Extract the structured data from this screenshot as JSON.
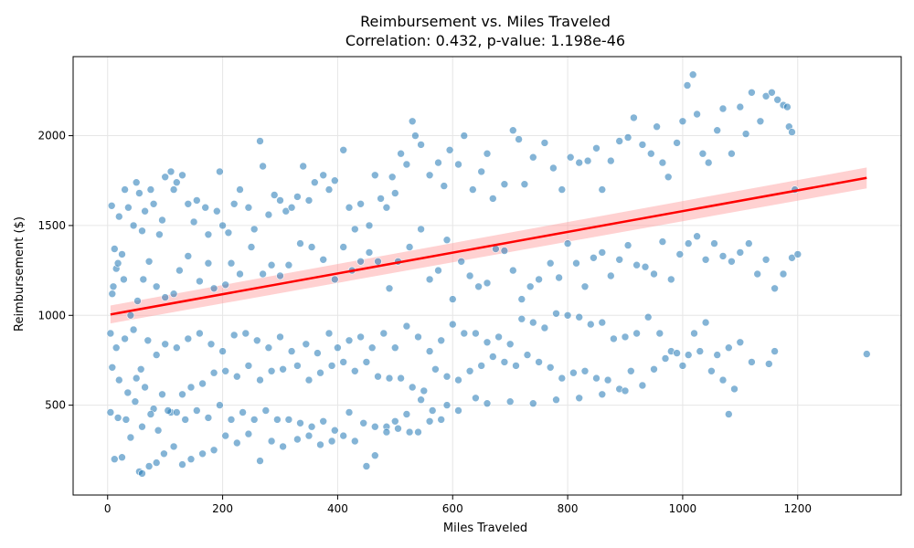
{
  "chart_data": {
    "type": "scatter",
    "title": "Reimbursement vs. Miles Traveled",
    "subtitle": "Correlation: 0.432, p-value: 1.198e-46",
    "xlabel": "Miles Traveled",
    "ylabel": "Reimbursement ($)",
    "xlim": [
      -60,
      1380
    ],
    "ylim": [
      0,
      2440
    ],
    "xticks": [
      0,
      200,
      400,
      600,
      800,
      1000,
      1200
    ],
    "yticks": [
      500,
      1000,
      1500,
      2000
    ],
    "grid": true,
    "point_color": "#1f77b4",
    "fit_line": {
      "color": "#ff0000",
      "band_color": "#ff9999",
      "x": [
        5,
        1320
      ],
      "y": [
        1005,
        1765
      ],
      "band_half_width": [
        50,
        58
      ]
    },
    "points": [
      [
        7,
        1610
      ],
      [
        12,
        1370
      ],
      [
        8,
        1120
      ],
      [
        20,
        1550
      ],
      [
        25,
        1340
      ],
      [
        15,
        1260
      ],
      [
        30,
        1700
      ],
      [
        36,
        1600
      ],
      [
        45,
        1500
      ],
      [
        50,
        1740
      ],
      [
        55,
        1680
      ],
      [
        60,
        1470
      ],
      [
        65,
        1580
      ],
      [
        75,
        1700
      ],
      [
        80,
        1620
      ],
      [
        90,
        1450
      ],
      [
        95,
        1530
      ],
      [
        100,
        1770
      ],
      [
        110,
        1800
      ],
      [
        115,
        1700
      ],
      [
        120,
        1740
      ],
      [
        130,
        1780
      ],
      [
        140,
        1620
      ],
      [
        150,
        1520
      ],
      [
        155,
        1640
      ],
      [
        170,
        1600
      ],
      [
        175,
        1450
      ],
      [
        190,
        1580
      ],
      [
        195,
        1800
      ],
      [
        200,
        1500
      ],
      [
        210,
        1460
      ],
      [
        220,
        1620
      ],
      [
        230,
        1700
      ],
      [
        245,
        1600
      ],
      [
        255,
        1480
      ],
      [
        265,
        1970
      ],
      [
        270,
        1830
      ],
      [
        280,
        1560
      ],
      [
        290,
        1670
      ],
      [
        300,
        1640
      ],
      [
        310,
        1580
      ],
      [
        320,
        1600
      ],
      [
        330,
        1660
      ],
      [
        340,
        1830
      ],
      [
        350,
        1640
      ],
      [
        360,
        1740
      ],
      [
        375,
        1780
      ],
      [
        385,
        1700
      ],
      [
        395,
        1750
      ],
      [
        410,
        1920
      ],
      [
        420,
        1600
      ],
      [
        430,
        1480
      ],
      [
        440,
        1620
      ],
      [
        455,
        1500
      ],
      [
        465,
        1780
      ],
      [
        475,
        1650
      ],
      [
        485,
        1600
      ],
      [
        495,
        1770
      ],
      [
        500,
        1680
      ],
      [
        510,
        1900
      ],
      [
        520,
        1840
      ],
      [
        530,
        2080
      ],
      [
        535,
        2000
      ],
      [
        545,
        1950
      ],
      [
        560,
        1780
      ],
      [
        575,
        1850
      ],
      [
        585,
        1720
      ],
      [
        595,
        1920
      ],
      [
        610,
        1840
      ],
      [
        620,
        2000
      ],
      [
        635,
        1700
      ],
      [
        650,
        1800
      ],
      [
        660,
        1900
      ],
      [
        670,
        1650
      ],
      [
        690,
        1730
      ],
      [
        705,
        2030
      ],
      [
        715,
        1980
      ],
      [
        725,
        1730
      ],
      [
        740,
        1880
      ],
      [
        760,
        1960
      ],
      [
        775,
        1820
      ],
      [
        790,
        1700
      ],
      [
        805,
        1880
      ],
      [
        820,
        1850
      ],
      [
        835,
        1860
      ],
      [
        850,
        1930
      ],
      [
        860,
        1700
      ],
      [
        875,
        1860
      ],
      [
        890,
        1970
      ],
      [
        905,
        1990
      ],
      [
        915,
        2100
      ],
      [
        930,
        1950
      ],
      [
        945,
        1900
      ],
      [
        955,
        2050
      ],
      [
        965,
        1850
      ],
      [
        975,
        1770
      ],
      [
        990,
        1960
      ],
      [
        1000,
        2080
      ],
      [
        1008,
        2280
      ],
      [
        1018,
        2340
      ],
      [
        1025,
        2120
      ],
      [
        1035,
        1900
      ],
      [
        1045,
        1850
      ],
      [
        1060,
        2030
      ],
      [
        1070,
        2150
      ],
      [
        1085,
        1900
      ],
      [
        1100,
        2160
      ],
      [
        1110,
        2010
      ],
      [
        1120,
        2240
      ],
      [
        1135,
        2080
      ],
      [
        1145,
        2220
      ],
      [
        1155,
        2240
      ],
      [
        1165,
        2200
      ],
      [
        1175,
        2170
      ],
      [
        1182,
        2160
      ],
      [
        1185,
        2050
      ],
      [
        1190,
        2020
      ],
      [
        1195,
        1700
      ],
      [
        10,
        1160
      ],
      [
        18,
        1290
      ],
      [
        28,
        1200
      ],
      [
        40,
        1000
      ],
      [
        52,
        1080
      ],
      [
        62,
        1200
      ],
      [
        72,
        1300
      ],
      [
        85,
        1160
      ],
      [
        100,
        1100
      ],
      [
        115,
        1120
      ],
      [
        125,
        1250
      ],
      [
        140,
        1330
      ],
      [
        160,
        1190
      ],
      [
        175,
        1290
      ],
      [
        185,
        1150
      ],
      [
        205,
        1170
      ],
      [
        215,
        1290
      ],
      [
        230,
        1230
      ],
      [
        250,
        1380
      ],
      [
        270,
        1230
      ],
      [
        285,
        1280
      ],
      [
        300,
        1220
      ],
      [
        315,
        1280
      ],
      [
        335,
        1400
      ],
      [
        355,
        1380
      ],
      [
        375,
        1310
      ],
      [
        395,
        1200
      ],
      [
        410,
        1380
      ],
      [
        425,
        1250
      ],
      [
        440,
        1300
      ],
      [
        455,
        1350
      ],
      [
        470,
        1300
      ],
      [
        490,
        1150
      ],
      [
        505,
        1300
      ],
      [
        525,
        1380
      ],
      [
        545,
        1480
      ],
      [
        560,
        1200
      ],
      [
        575,
        1250
      ],
      [
        590,
        1420
      ],
      [
        600,
        1090
      ],
      [
        615,
        1300
      ],
      [
        630,
        1220
      ],
      [
        645,
        1160
      ],
      [
        660,
        1180
      ],
      [
        675,
        1370
      ],
      [
        690,
        1360
      ],
      [
        705,
        1250
      ],
      [
        720,
        1090
      ],
      [
        735,
        1160
      ],
      [
        750,
        1200
      ],
      [
        770,
        1290
      ],
      [
        785,
        1210
      ],
      [
        800,
        1400
      ],
      [
        815,
        1290
      ],
      [
        830,
        1160
      ],
      [
        845,
        1320
      ],
      [
        860,
        1350
      ],
      [
        875,
        1220
      ],
      [
        890,
        1310
      ],
      [
        905,
        1390
      ],
      [
        920,
        1280
      ],
      [
        935,
        1270
      ],
      [
        950,
        1230
      ],
      [
        965,
        1410
      ],
      [
        980,
        1200
      ],
      [
        995,
        1340
      ],
      [
        1010,
        1400
      ],
      [
        1025,
        1440
      ],
      [
        1040,
        1310
      ],
      [
        1055,
        1400
      ],
      [
        1070,
        1330
      ],
      [
        1085,
        1300
      ],
      [
        1100,
        1350
      ],
      [
        1115,
        1400
      ],
      [
        1130,
        1230
      ],
      [
        1145,
        1310
      ],
      [
        1160,
        1150
      ],
      [
        1175,
        1230
      ],
      [
        1190,
        1320
      ],
      [
        1200,
        1340
      ],
      [
        5,
        900
      ],
      [
        15,
        820
      ],
      [
        30,
        870
      ],
      [
        45,
        920
      ],
      [
        58,
        700
      ],
      [
        70,
        860
      ],
      [
        85,
        780
      ],
      [
        100,
        840
      ],
      [
        120,
        820
      ],
      [
        140,
        870
      ],
      [
        160,
        900
      ],
      [
        180,
        840
      ],
      [
        200,
        800
      ],
      [
        220,
        890
      ],
      [
        240,
        900
      ],
      [
        260,
        860
      ],
      [
        280,
        820
      ],
      [
        300,
        880
      ],
      [
        320,
        800
      ],
      [
        345,
        840
      ],
      [
        365,
        790
      ],
      [
        385,
        900
      ],
      [
        400,
        820
      ],
      [
        420,
        860
      ],
      [
        440,
        880
      ],
      [
        460,
        820
      ],
      [
        480,
        900
      ],
      [
        500,
        820
      ],
      [
        520,
        940
      ],
      [
        540,
        880
      ],
      [
        560,
        800
      ],
      [
        580,
        860
      ],
      [
        600,
        950
      ],
      [
        620,
        900
      ],
      [
        640,
        900
      ],
      [
        660,
        850
      ],
      [
        680,
        880
      ],
      [
        700,
        840
      ],
      [
        720,
        980
      ],
      [
        740,
        960
      ],
      [
        760,
        930
      ],
      [
        780,
        1010
      ],
      [
        800,
        1000
      ],
      [
        820,
        990
      ],
      [
        840,
        950
      ],
      [
        860,
        960
      ],
      [
        880,
        870
      ],
      [
        900,
        880
      ],
      [
        920,
        900
      ],
      [
        940,
        990
      ],
      [
        960,
        900
      ],
      [
        980,
        800
      ],
      [
        1000,
        720
      ],
      [
        1020,
        900
      ],
      [
        1040,
        960
      ],
      [
        1060,
        780
      ],
      [
        1080,
        820
      ],
      [
        1100,
        850
      ],
      [
        1120,
        740
      ],
      [
        1150,
        730
      ],
      [
        1160,
        800
      ],
      [
        1320,
        785
      ],
      [
        8,
        710
      ],
      [
        20,
        640
      ],
      [
        35,
        570
      ],
      [
        50,
        650
      ],
      [
        65,
        600
      ],
      [
        80,
        480
      ],
      [
        95,
        560
      ],
      [
        110,
        460
      ],
      [
        130,
        560
      ],
      [
        145,
        600
      ],
      [
        165,
        620
      ],
      [
        185,
        680
      ],
      [
        205,
        690
      ],
      [
        225,
        660
      ],
      [
        245,
        720
      ],
      [
        265,
        640
      ],
      [
        285,
        690
      ],
      [
        305,
        700
      ],
      [
        330,
        720
      ],
      [
        350,
        640
      ],
      [
        370,
        680
      ],
      [
        390,
        720
      ],
      [
        410,
        740
      ],
      [
        430,
        690
      ],
      [
        450,
        740
      ],
      [
        470,
        660
      ],
      [
        490,
        650
      ],
      [
        510,
        650
      ],
      [
        530,
        600
      ],
      [
        550,
        580
      ],
      [
        570,
        700
      ],
      [
        590,
        660
      ],
      [
        610,
        640
      ],
      [
        630,
        690
      ],
      [
        650,
        720
      ],
      [
        670,
        770
      ],
      [
        690,
        740
      ],
      [
        710,
        720
      ],
      [
        730,
        780
      ],
      [
        750,
        740
      ],
      [
        770,
        710
      ],
      [
        790,
        650
      ],
      [
        810,
        680
      ],
      [
        830,
        690
      ],
      [
        850,
        650
      ],
      [
        870,
        640
      ],
      [
        890,
        590
      ],
      [
        910,
        690
      ],
      [
        930,
        610
      ],
      [
        950,
        700
      ],
      [
        970,
        760
      ],
      [
        990,
        790
      ],
      [
        1010,
        780
      ],
      [
        1030,
        800
      ],
      [
        1050,
        690
      ],
      [
        1070,
        640
      ],
      [
        1090,
        590
      ],
      [
        5,
        460
      ],
      [
        18,
        430
      ],
      [
        32,
        420
      ],
      [
        48,
        520
      ],
      [
        60,
        380
      ],
      [
        75,
        450
      ],
      [
        88,
        360
      ],
      [
        105,
        470
      ],
      [
        120,
        460
      ],
      [
        135,
        420
      ],
      [
        155,
        470
      ],
      [
        175,
        430
      ],
      [
        195,
        500
      ],
      [
        215,
        420
      ],
      [
        235,
        460
      ],
      [
        255,
        420
      ],
      [
        275,
        470
      ],
      [
        295,
        420
      ],
      [
        315,
        420
      ],
      [
        335,
        400
      ],
      [
        355,
        380
      ],
      [
        375,
        410
      ],
      [
        395,
        360
      ],
      [
        420,
        460
      ],
      [
        445,
        400
      ],
      [
        465,
        380
      ],
      [
        485,
        380
      ],
      [
        505,
        370
      ],
      [
        525,
        350
      ],
      [
        545,
        530
      ],
      [
        565,
        470
      ],
      [
        590,
        500
      ],
      [
        610,
        470
      ],
      [
        640,
        540
      ],
      [
        660,
        510
      ],
      [
        700,
        520
      ],
      [
        740,
        510
      ],
      [
        780,
        530
      ],
      [
        820,
        540
      ],
      [
        860,
        560
      ],
      [
        900,
        580
      ],
      [
        1080,
        450
      ],
      [
        12,
        200
      ],
      [
        25,
        210
      ],
      [
        40,
        320
      ],
      [
        55,
        130
      ],
      [
        60,
        120
      ],
      [
        72,
        160
      ],
      [
        85,
        180
      ],
      [
        98,
        230
      ],
      [
        115,
        270
      ],
      [
        130,
        170
      ],
      [
        145,
        200
      ],
      [
        165,
        230
      ],
      [
        185,
        250
      ],
      [
        205,
        330
      ],
      [
        225,
        290
      ],
      [
        245,
        340
      ],
      [
        265,
        190
      ],
      [
        285,
        300
      ],
      [
        305,
        270
      ],
      [
        330,
        310
      ],
      [
        350,
        330
      ],
      [
        370,
        280
      ],
      [
        390,
        300
      ],
      [
        410,
        330
      ],
      [
        430,
        300
      ],
      [
        450,
        160
      ],
      [
        465,
        220
      ],
      [
        485,
        350
      ],
      [
        500,
        410
      ],
      [
        520,
        450
      ],
      [
        540,
        350
      ],
      [
        560,
        410
      ],
      [
        580,
        420
      ]
    ]
  }
}
